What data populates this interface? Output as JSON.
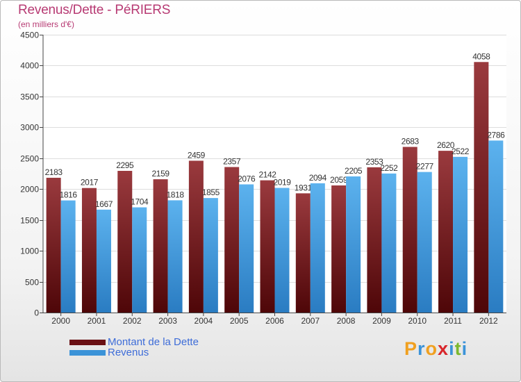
{
  "chart_data": {
    "type": "bar",
    "title": "Revenus/Dette - PéRIERS",
    "subtitle": "(en milliers d'€)",
    "categories": [
      "2000",
      "2001",
      "2002",
      "2003",
      "2004",
      "2005",
      "2006",
      "2007",
      "2008",
      "2009",
      "2010",
      "2011",
      "2012"
    ],
    "series": [
      {
        "name": "Montant de la Dette",
        "color": "#7a1e22",
        "values": [
          2183,
          2017,
          2295,
          2159,
          2459,
          2357,
          2142,
          1931,
          2059,
          2353,
          2683,
          2620,
          4058
        ]
      },
      {
        "name": "Revenus",
        "color": "#3b93d8",
        "values": [
          1816,
          1667,
          1704,
          1818,
          1855,
          2076,
          2019,
          2094,
          2205,
          2252,
          2277,
          2522,
          2786
        ]
      }
    ],
    "ylim": [
      0,
      4500
    ],
    "yticks": [
      0,
      500,
      1000,
      1500,
      2000,
      2500,
      3000,
      3500,
      4000,
      4500
    ],
    "grid": true
  },
  "legend": {
    "items": [
      {
        "label": "Montant de la Dette",
        "color": "#6a1014"
      },
      {
        "label": "Revenus",
        "color": "#3b93d8"
      }
    ]
  },
  "brand": {
    "letters": [
      {
        "char": "P",
        "color": "#f0a020"
      },
      {
        "char": "r",
        "color": "#3b93d8"
      },
      {
        "char": "o",
        "color": "#f0a020"
      },
      {
        "char": "x",
        "color": "#d8262b"
      },
      {
        "char": "i",
        "color": "#3b93d8"
      },
      {
        "char": "t",
        "color": "#7cb82f"
      },
      {
        "char": "i",
        "color": "#3b93d8"
      }
    ]
  }
}
